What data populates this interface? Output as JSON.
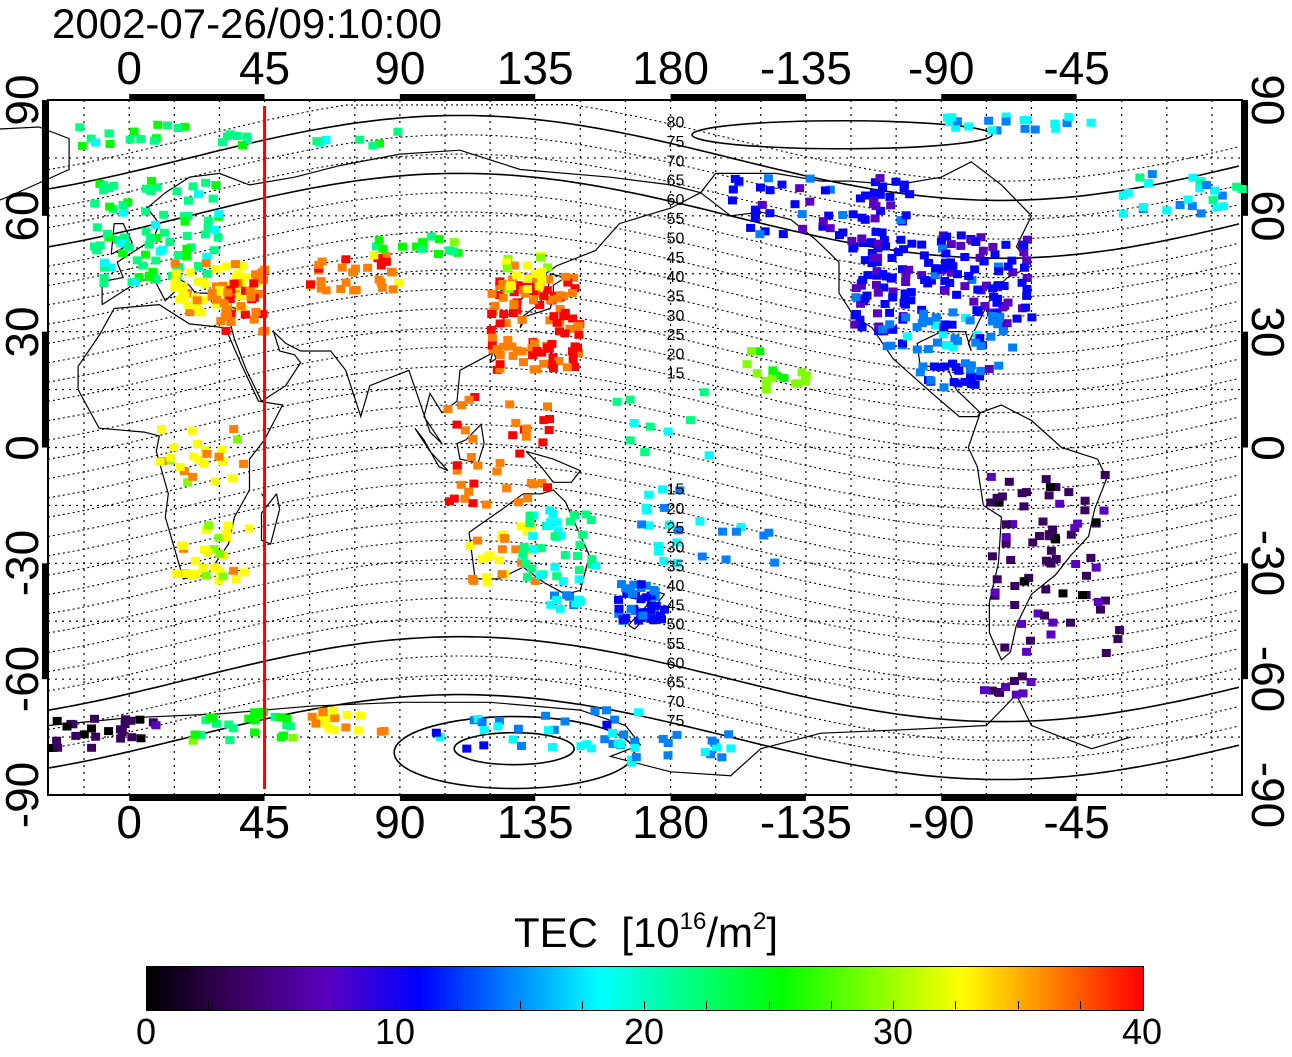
{
  "title": "2002-07-26/09:10:00",
  "map": {
    "top_lon_ticks": [
      "0",
      "45",
      "90",
      "135",
      "180",
      "-135",
      "-90",
      "-45"
    ],
    "bottom_lon_ticks": [
      "0",
      "45",
      "90",
      "135",
      "180",
      "-135",
      "-90",
      "-45"
    ],
    "lat_ticks": [
      "90",
      "60",
      "30",
      "0",
      "-30",
      "-60",
      "-90"
    ],
    "lon_range": [
      -27,
      370
    ],
    "lat_range": [
      -90,
      90
    ],
    "marker_longitude": 45,
    "marker_color": "#ff0000",
    "magnetic_latitude_labels": [
      "80",
      "75",
      "70",
      "65",
      "60",
      "55",
      "50",
      "45",
      "40",
      "35",
      "30",
      "25",
      "20",
      "15",
      "15",
      "20",
      "25",
      "30",
      "35",
      "40",
      "45",
      "50",
      "55",
      "60",
      "65",
      "70",
      "75"
    ]
  },
  "colorbar": {
    "label": "TEC",
    "unit_base": "[10",
    "unit_exp": "16",
    "unit_mid": "/m",
    "unit_exp2": "2",
    "unit_end": "]",
    "ticks": [
      "0",
      "10",
      "20",
      "30",
      "40"
    ],
    "range": [
      0,
      40
    ],
    "colors": [
      "#000000",
      "#3a0060",
      "#5a00c0",
      "#0000ff",
      "#0080ff",
      "#00ffff",
      "#00ff80",
      "#00ff00",
      "#80ff00",
      "#ffff00",
      "#ff8000",
      "#ff0000"
    ]
  }
}
